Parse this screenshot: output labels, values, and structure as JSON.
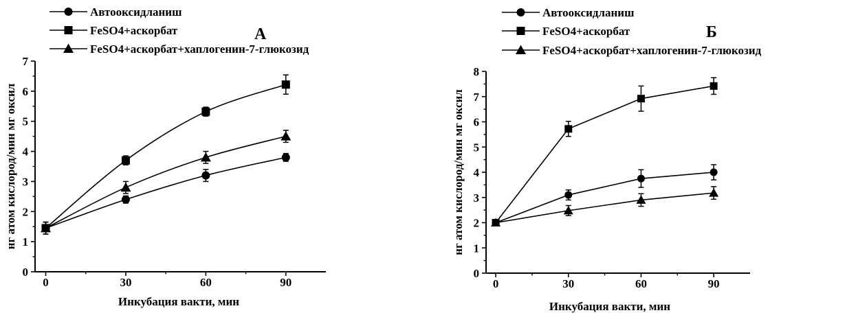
{
  "chart_data": [
    {
      "type": "line",
      "panel_label": "А",
      "xlabel": "Инкубация вакти, мин",
      "ylabel": "нг атом кислород/мин мг оксил",
      "x": [
        0,
        30,
        60,
        90
      ],
      "xticks": [
        0,
        30,
        60,
        90
      ],
      "yticks": [
        0,
        1,
        2,
        3,
        4,
        5,
        6,
        7
      ],
      "xlim": [
        -4,
        105
      ],
      "ylim": [
        0,
        7
      ],
      "curve": "smooth",
      "legend_position": "top-left",
      "series": [
        {
          "name": "Автооксидланиш",
          "marker": "circle",
          "values": [
            1.45,
            2.4,
            3.2,
            3.8
          ],
          "errors": [
            0.2,
            0.12,
            0.2,
            0.13
          ]
        },
        {
          "name": "FeSO4+аскорбат",
          "marker": "square",
          "values": [
            1.45,
            3.7,
            5.32,
            6.22
          ],
          "errors": [
            0.2,
            0.15,
            0.15,
            0.32
          ]
        },
        {
          "name": "FeSO4+аскорбат+хаплогенин-7-глюкозид",
          "marker": "triangle",
          "values": [
            1.45,
            2.8,
            3.8,
            4.5
          ],
          "errors": [
            0.2,
            0.2,
            0.2,
            0.2
          ]
        }
      ]
    },
    {
      "type": "line",
      "panel_label": "Б",
      "xlabel": "Инкубация вакти, мин",
      "ylabel": "нг атом кислород/мин мг оксил",
      "x": [
        0,
        30,
        60,
        90
      ],
      "xticks": [
        0,
        30,
        60,
        90
      ],
      "yticks": [
        0,
        1,
        2,
        3,
        4,
        5,
        6,
        7,
        8
      ],
      "xlim": [
        -4,
        105
      ],
      "ylim": [
        0,
        8
      ],
      "curve": "straight",
      "legend_position": "top-left",
      "series": [
        {
          "name": "Автооксидланиш",
          "marker": "circle",
          "values": [
            2.0,
            3.1,
            3.75,
            4.0
          ],
          "errors": [
            0.1,
            0.2,
            0.35,
            0.3
          ]
        },
        {
          "name": "FeSO4+аскорбат",
          "marker": "square",
          "values": [
            2.0,
            5.72,
            6.92,
            7.42
          ],
          "errors": [
            0.1,
            0.3,
            0.5,
            0.33
          ]
        },
        {
          "name": "FeSO4+аскорбат+хаплогенин-7-глюкозид",
          "marker": "triangle",
          "values": [
            2.0,
            2.48,
            2.9,
            3.18
          ],
          "errors": [
            0.1,
            0.2,
            0.25,
            0.25
          ]
        }
      ]
    }
  ]
}
